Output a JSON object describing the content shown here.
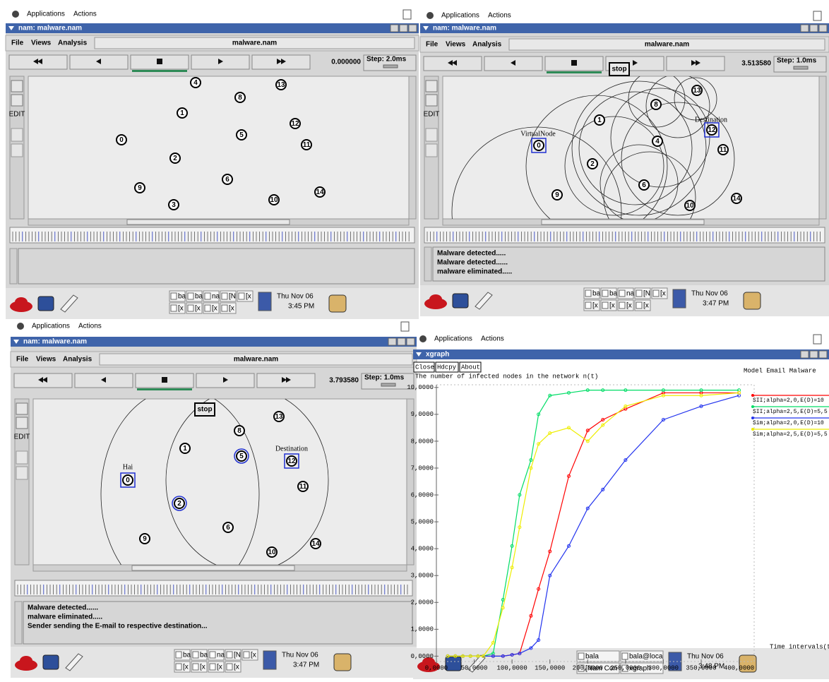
{
  "windows": [
    {
      "app_menu": [
        "Applications",
        "Actions"
      ],
      "title": "nam: malware.nam",
      "menu": [
        "File",
        "Views",
        "Analysis"
      ],
      "file": "malware.nam",
      "time": "0.000000",
      "step": "Step: 2.0ms",
      "edit_label": "EDIT",
      "nodes": [
        "0",
        "1",
        "2",
        "3",
        "4",
        "5",
        "6",
        "8",
        "9",
        "10",
        "11",
        "12",
        "13",
        "14"
      ],
      "log": [],
      "taskbar": {
        "tasks": [
          "ba",
          "ba",
          "na",
          "[N",
          "[x",
          "[x",
          "[x",
          "[x",
          "[x"
        ],
        "date": "Thu Nov 06",
        "time": "3:45 PM"
      }
    },
    {
      "app_menu": [
        "Applications",
        "Actions"
      ],
      "title": "nam: malware.nam",
      "menu": [
        "File",
        "Views",
        "Analysis"
      ],
      "file": "malware.nam",
      "time": "3.513580",
      "step": "Step: 1.0ms",
      "edit_label": "EDIT",
      "stop": "stop",
      "nodes": [
        "0",
        "1",
        "2",
        "4",
        "6",
        "8",
        "9",
        "10",
        "11",
        "12",
        "13",
        "14"
      ],
      "tags": [
        "VirtualNode",
        "Destination"
      ],
      "log": [
        "Malware detected.....",
        "Malware detected......",
        "malware eliminated....."
      ],
      "taskbar": {
        "tasks": [
          "ba",
          "ba",
          "na",
          "[N",
          "[x",
          "[x",
          "[x",
          "[x",
          "[x"
        ],
        "date": "Thu Nov 06",
        "time": "3:47 PM"
      }
    },
    {
      "app_menu": [
        "Applications",
        "Actions"
      ],
      "title": "nam: malware.nam",
      "menu": [
        "File",
        "Views",
        "Analysis"
      ],
      "file": "malware.nam",
      "time": "3.793580",
      "step": "Step: 1.0ms",
      "edit_label": "EDIT",
      "stop": "stop",
      "nodes": [
        "0",
        "1",
        "2",
        "5",
        "6",
        "8",
        "9",
        "10",
        "11",
        "12",
        "13",
        "14"
      ],
      "tags": [
        "Hai",
        "Destination"
      ],
      "log": [
        "Malware detected......",
        "malware eliminated.....",
        "Sender sending the E-mail to respective destination..."
      ],
      "taskbar": {
        "tasks": [
          "ba",
          "ba",
          "na",
          "[N",
          "[x",
          "[x",
          "[x",
          "[x",
          "[x"
        ],
        "date": "Thu Nov 06",
        "time": "3:47 PM"
      }
    }
  ],
  "xgraph": {
    "app_menu": [
      "Applications",
      "Actions"
    ],
    "title": "xgraph",
    "buttons": [
      "Close",
      "Hdcpy",
      "About"
    ],
    "taskbar": {
      "tasks": [
        "bala",
        "bala@loca",
        "[Nam Con",
        "xgraph"
      ],
      "date": "Thu Nov 06",
      "time": "3:48 PM"
    }
  },
  "chart_data": {
    "type": "line",
    "title": "Model Email Malware",
    "y_label": "The number of infected nodes in the network n(t)",
    "x_label": "Time intervals(t)",
    "x": [
      15,
      25,
      35,
      45,
      55,
      62,
      75,
      88,
      100,
      110,
      125,
      135,
      150,
      175,
      200,
      220,
      250,
      300,
      350,
      400
    ],
    "series": [
      {
        "name": "SII;alpha=2,0,E(D)=10",
        "color": "#ff0000",
        "values": [
          0,
          0,
          0,
          0,
          0,
          0,
          0,
          0,
          0.05,
          0.1,
          1.5,
          2.5,
          3.9,
          6.7,
          8.4,
          8.8,
          9.2,
          9.8,
          9.8,
          9.8
        ]
      },
      {
        "name": "SII;alpha=2,5,E(D)=5,5",
        "color": "#00dd66",
        "values": [
          0,
          0,
          0,
          0,
          0,
          0,
          0.1,
          2.1,
          4.1,
          6.0,
          7.3,
          9.0,
          9.7,
          9.8,
          9.9,
          9.9,
          9.9,
          9.9,
          9.9,
          9.9
        ]
      },
      {
        "name": "Sim;alpha=2,0,E(D)=10",
        "color": "#2233ee",
        "values": [
          0,
          0,
          0,
          0,
          0,
          0,
          0,
          0,
          0.05,
          0.1,
          0.3,
          0.6,
          3.0,
          4.1,
          5.5,
          6.2,
          7.3,
          8.8,
          9.3,
          9.7
        ]
      },
      {
        "name": "Sim;alpha=2,5,E(D)=5,5",
        "color": "#eeee00",
        "values": [
          0,
          0,
          0,
          0,
          0,
          0,
          0.5,
          1.8,
          3.3,
          4.8,
          7.0,
          7.9,
          8.3,
          8.5,
          8.0,
          8.6,
          9.3,
          9.7,
          9.7,
          9.8
        ]
      }
    ],
    "xlim": [
      0,
      420
    ],
    "ylim": [
      -0.2,
      10.1
    ],
    "xticks": [
      {
        "value": 0,
        "label": "0,0000"
      },
      {
        "value": 50,
        "label": "50,0000"
      },
      {
        "value": 100,
        "label": "100,0000"
      },
      {
        "value": 150,
        "label": "150,0000"
      },
      {
        "value": 200,
        "label": "200,0000"
      },
      {
        "value": 250,
        "label": "250,0000"
      },
      {
        "value": 300,
        "label": "300,0000"
      },
      {
        "value": 350,
        "label": "350,0000"
      },
      {
        "value": 400,
        "label": "400,0000"
      }
    ],
    "yticks": [
      {
        "value": 0,
        "label": "0,0000"
      },
      {
        "value": 1,
        "label": "1,0000"
      },
      {
        "value": 2,
        "label": "2,0000"
      },
      {
        "value": 3,
        "label": "3,0000"
      },
      {
        "value": 4,
        "label": "4,0000"
      },
      {
        "value": 5,
        "label": "5,0000"
      },
      {
        "value": 6,
        "label": "6,0000"
      },
      {
        "value": 7,
        "label": "7,0000"
      },
      {
        "value": 8,
        "label": "8,0000"
      },
      {
        "value": 9,
        "label": "9,0000"
      },
      {
        "value": 10,
        "label": "10,0000"
      }
    ]
  }
}
